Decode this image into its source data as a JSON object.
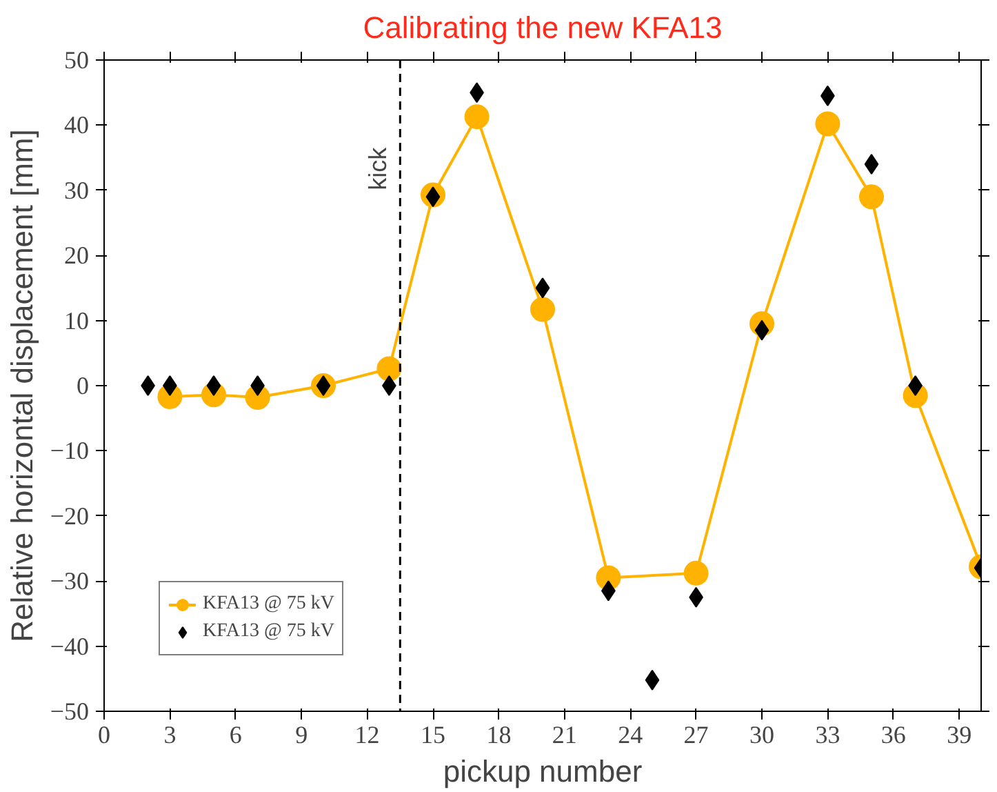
{
  "chart_data": {
    "type": "line",
    "title": "Calibrating the new KFA13",
    "xlabel": "pickup number",
    "ylabel": "Relative horizontal displacement [mm]",
    "xlim": [
      0,
      40
    ],
    "xticks": [
      0,
      3,
      6,
      9,
      12,
      15,
      18,
      21,
      24,
      27,
      30,
      33,
      36,
      39
    ],
    "ylim": [
      -50,
      50
    ],
    "yticks": [
      -50,
      -40,
      -30,
      -20,
      -10,
      0,
      10,
      20,
      30,
      40,
      50
    ],
    "grid": false,
    "legend": "bottom left",
    "series": [
      {
        "name": "KFA13 @ 75 kV",
        "color": "#ffb300",
        "marker": "circle",
        "x": [
          3,
          5,
          7,
          10,
          13,
          15,
          17,
          20,
          23,
          27,
          30,
          33,
          35,
          37,
          40
        ],
        "values": [
          -1.7,
          -1.4,
          -1.8,
          0,
          2.6,
          29.3,
          41.3,
          11.7,
          -29.5,
          -28.8,
          9.5,
          40.2,
          29,
          -1.5,
          -27.8
        ]
      },
      {
        "name": "KFA13 @ 75 kV",
        "type": "scatter",
        "color": "#000000",
        "marker": "diamond",
        "x": [
          2,
          3,
          5,
          7,
          10,
          13,
          15,
          17,
          20,
          23,
          25,
          27,
          30,
          33,
          35,
          37,
          40
        ],
        "values": [
          0,
          0,
          0,
          0,
          0,
          0,
          29,
          45,
          15,
          -31.5,
          -45.2,
          -32.5,
          8.5,
          44.5,
          34,
          0,
          -28
        ]
      }
    ],
    "ref_lines": [
      {
        "axis": "x",
        "value": 13.5,
        "label": "kick",
        "color": "#000000",
        "line_style": "dashed"
      }
    ]
  }
}
